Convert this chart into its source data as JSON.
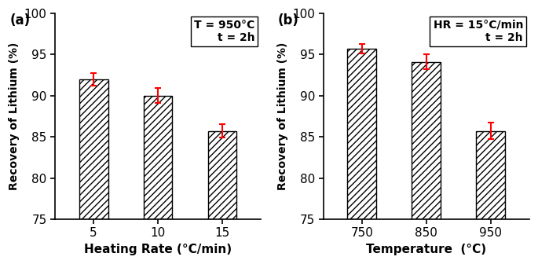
{
  "panel_a": {
    "categories": [
      "5",
      "10",
      "15"
    ],
    "values": [
      92.0,
      90.0,
      85.7
    ],
    "errors": [
      0.8,
      0.9,
      0.8
    ],
    "xlabel": "Heating Rate (°C/min)",
    "ylabel": "Recovery of Lithium (%)",
    "annotation_line1": "T = 950°C",
    "annotation_line2": "t = 2h",
    "label": "(a)",
    "ylim": [
      75,
      100
    ],
    "yticks": [
      75,
      80,
      85,
      90,
      95,
      100
    ]
  },
  "panel_b": {
    "categories": [
      "750",
      "850",
      "950"
    ],
    "values": [
      95.7,
      94.1,
      85.7
    ],
    "errors": [
      0.6,
      0.9,
      1.0
    ],
    "xlabel": "Temperature  (°C)",
    "ylabel": "Recovery of Lithium (%)",
    "annotation_line1": "HR = 15°C/min",
    "annotation_line2": "t = 2h",
    "label": "(b)",
    "ylim": [
      75,
      100
    ],
    "yticks": [
      75,
      80,
      85,
      90,
      95,
      100
    ]
  },
  "hatch_pattern": "////",
  "bar_facecolor": "white",
  "bar_edgecolor": "black",
  "error_color": "red",
  "bar_width": 0.45
}
